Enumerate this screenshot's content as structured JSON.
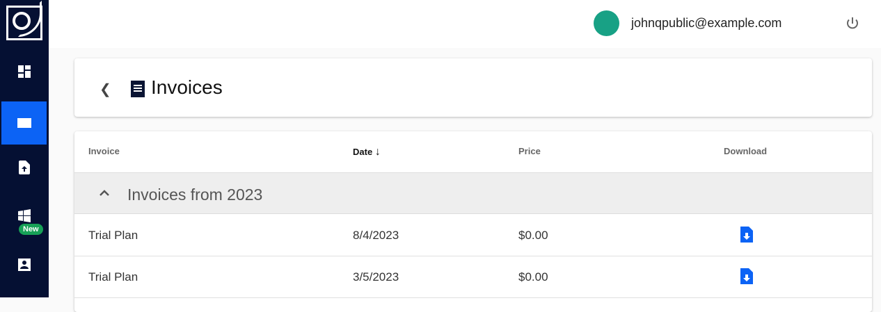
{
  "sidebar": {
    "items": [
      {
        "name": "dashboard"
      },
      {
        "name": "invoices",
        "active": true
      },
      {
        "name": "upload"
      },
      {
        "name": "windows",
        "badge": "New"
      },
      {
        "name": "account"
      }
    ]
  },
  "header": {
    "email": "johnqpublic@example.com",
    "avatar_color": "#18a185"
  },
  "page": {
    "title": "Invoices"
  },
  "table": {
    "columns": [
      "Invoice",
      "Date",
      "Price",
      "Download"
    ],
    "sort_column": "Date",
    "sort_direction": "descending",
    "group": "Invoices from 2023",
    "rows": [
      {
        "invoice": "Trial Plan",
        "date": "8/4/2023",
        "price": "$0.00"
      },
      {
        "invoice": "Trial Plan",
        "date": "3/5/2023",
        "price": "$0.00"
      }
    ]
  },
  "colors": {
    "sidebar": "#051033",
    "accent": "#0c63f5",
    "badge": "#17a157"
  }
}
